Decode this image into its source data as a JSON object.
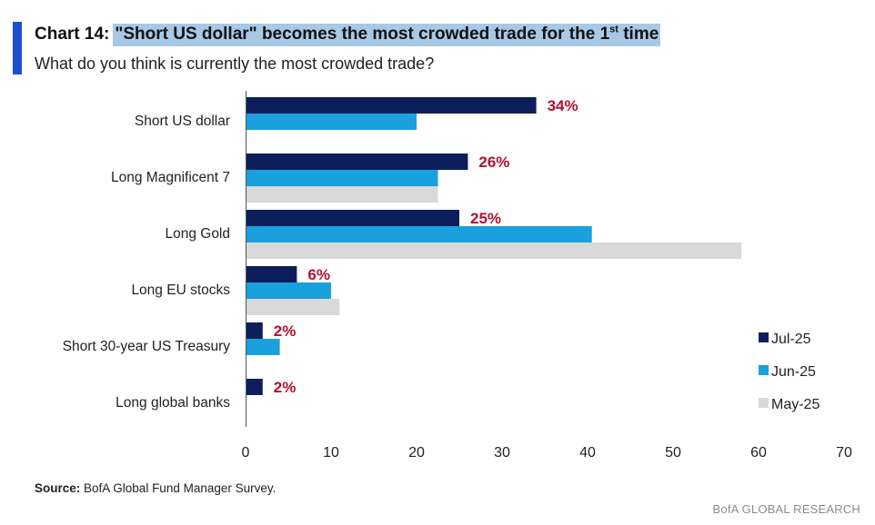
{
  "header": {
    "chart_label": "Chart 14:",
    "title_main": "\"Short US dollar\" becomes the most crowded trade for the 1",
    "title_sup": "st",
    "title_end": " time",
    "subtitle": "What do you think is currently the most crowded trade?"
  },
  "footer": {
    "source_label": "Source:",
    "source_text": " BofA Global Fund Manager Survey.",
    "brand": "BofA GLOBAL RESEARCH"
  },
  "chart_data": {
    "type": "bar",
    "orientation": "horizontal",
    "categories": [
      "Short US dollar",
      "Long Magnificent 7",
      "Long Gold",
      "Long EU stocks",
      "Short 30-year US Treasury",
      "Long global banks"
    ],
    "series": [
      {
        "name": "Jul-25",
        "color": "#0c1f5c",
        "values": [
          34,
          26,
          25,
          6,
          2,
          2
        ],
        "labels": [
          "34%",
          "26%",
          "25%",
          "6%",
          "2%",
          "2%"
        ]
      },
      {
        "name": "Jun-25",
        "color": "#1aa0dc",
        "values": [
          20,
          22.5,
          40.5,
          10,
          4,
          0
        ]
      },
      {
        "name": "May-25",
        "color": "#d9d9d9",
        "values": [
          null,
          22.5,
          58,
          11,
          null,
          null
        ]
      }
    ],
    "xlim": [
      0,
      70
    ],
    "x_ticks": [
      "0",
      "10",
      "20",
      "30",
      "40",
      "50",
      "60",
      "70"
    ],
    "label_color": "#b01030",
    "legend_position": "right",
    "grid": false
  }
}
